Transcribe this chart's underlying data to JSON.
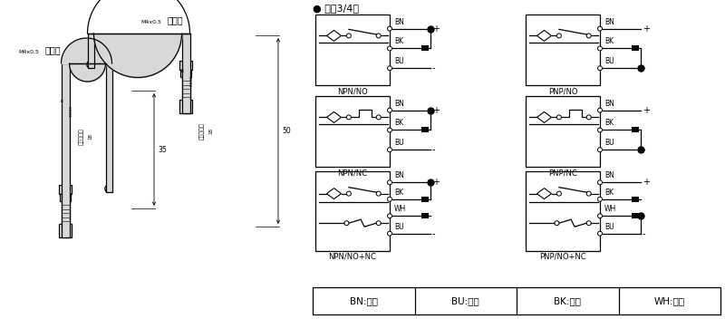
{
  "bg_color": "#ffffff",
  "line_color": "#000000",
  "title_dc": "● 直洖3/4线",
  "legend": [
    "BN:棕色",
    "BU:兰色",
    "BK:黑色",
    "WH:白色"
  ]
}
